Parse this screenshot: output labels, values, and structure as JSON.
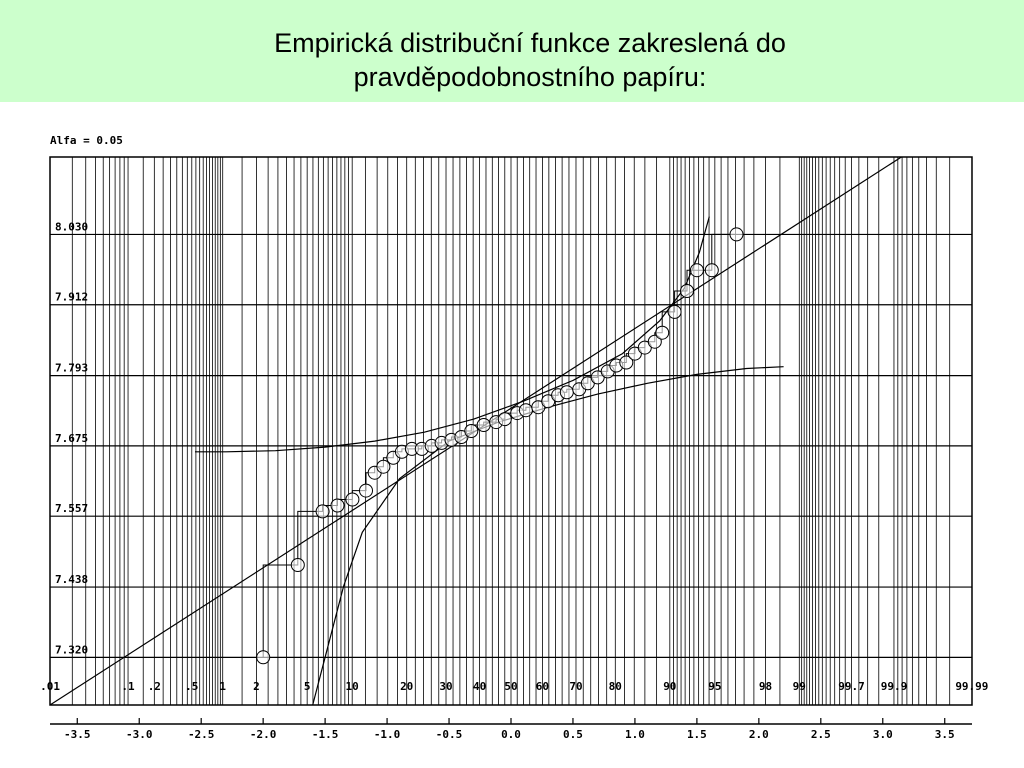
{
  "slide": {
    "title_line1": "Empirická distribuční funkce zakreslená do",
    "title_line2": "pravděpodobnostního papíru:",
    "band_color": "#ccffcc"
  },
  "chart_data": {
    "type": "scatter",
    "title": "Alfa = 0.05",
    "xlabel": "",
    "ylabel": "",
    "x_scale": "normal-probability",
    "y_ticks": [
      "7.320",
      "7.438",
      "7.557",
      "7.675",
      "7.793",
      "7.912",
      "8.030"
    ],
    "y_tick_values": [
      7.32,
      7.438,
      7.557,
      7.675,
      7.793,
      7.912,
      8.03
    ],
    "ylim": [
      7.24,
      8.16
    ],
    "x_percent_ticks": [
      ".01",
      ".1",
      ".2",
      ".5",
      "1",
      "2",
      "5",
      "10",
      "20",
      "30",
      "40",
      "50",
      "60",
      "70",
      "80",
      "90",
      "95",
      "98",
      "99",
      "99.7",
      "99.9",
      "99.99"
    ],
    "x_percent_values": [
      0.01,
      0.1,
      0.2,
      0.5,
      1,
      2,
      5,
      10,
      20,
      30,
      40,
      50,
      60,
      70,
      80,
      90,
      95,
      98,
      99,
      99.7,
      99.9,
      99.99
    ],
    "x_z_ticks": [
      "-3.5",
      "-3.0",
      "-2.5",
      "-2.0",
      "-1.5",
      "-1.0",
      "-0.5",
      "0.0",
      "0.5",
      "1.0",
      "1.5",
      "2.0",
      "2.5",
      "3.0",
      "3.5"
    ],
    "x_z_values": [
      -3.5,
      -3.0,
      -2.5,
      -2.0,
      -1.5,
      -1.0,
      -0.5,
      0.0,
      0.5,
      1.0,
      1.5,
      2.0,
      2.5,
      3.0,
      3.5
    ],
    "xlim_z": [
      -3.72,
      3.72
    ],
    "grid": true,
    "series": [
      {
        "kind": "points",
        "x_z": [
          -2.0,
          -1.72,
          -1.52,
          -1.4,
          -1.28,
          -1.17,
          -1.1,
          -1.03,
          -0.95,
          -0.88,
          -0.8,
          -0.72,
          -0.64,
          -0.56,
          -0.48,
          -0.4,
          -0.32,
          -0.22,
          -0.12,
          -0.05,
          0.05,
          0.12,
          0.22,
          0.3,
          0.38,
          0.45,
          0.55,
          0.62,
          0.7,
          0.78,
          0.85,
          0.93,
          1.0,
          1.08,
          1.16,
          1.22,
          1.32,
          1.42,
          1.5,
          1.62,
          1.82
        ],
        "y": [
          7.32,
          7.475,
          7.565,
          7.575,
          7.585,
          7.6,
          7.63,
          7.64,
          7.655,
          7.665,
          7.67,
          7.67,
          7.675,
          7.68,
          7.685,
          7.69,
          7.7,
          7.71,
          7.715,
          7.72,
          7.73,
          7.735,
          7.74,
          7.75,
          7.76,
          7.765,
          7.77,
          7.78,
          7.79,
          7.8,
          7.81,
          7.815,
          7.83,
          7.84,
          7.85,
          7.865,
          7.9,
          7.935,
          7.97,
          7.97,
          8.03
        ]
      },
      {
        "kind": "fit-line",
        "x_z": [
          -3.72,
          3.15
        ],
        "y": [
          7.24,
          8.16
        ]
      },
      {
        "kind": "upper-confidence",
        "x_z": [
          -2.55,
          -2.3,
          -1.9,
          -1.5,
          -1.1,
          -0.7,
          -0.3,
          0.1,
          0.5,
          0.9,
          1.2,
          1.4,
          1.52,
          1.6
        ],
        "y": [
          7.665,
          7.665,
          7.667,
          7.673,
          7.683,
          7.698,
          7.72,
          7.75,
          7.785,
          7.83,
          7.885,
          7.94,
          8.0,
          8.06
        ]
      },
      {
        "kind": "lower-confidence",
        "x_z": [
          -1.6,
          -1.5,
          -1.35,
          -1.2,
          -0.9,
          -0.5,
          -0.1,
          0.3,
          0.7,
          1.1,
          1.5,
          1.9,
          2.2
        ],
        "y": [
          7.24,
          7.32,
          7.44,
          7.53,
          7.62,
          7.683,
          7.715,
          7.74,
          7.762,
          7.78,
          7.795,
          7.805,
          7.808
        ]
      }
    ]
  }
}
